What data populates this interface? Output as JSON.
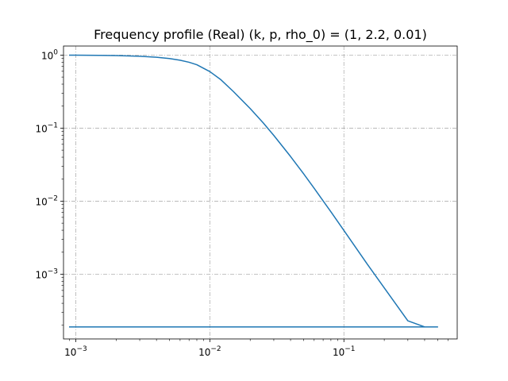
{
  "chart_data": {
    "type": "line",
    "title": "Frequency profile (Real) (k, p, rho_0) = (1, 2.2, 0.01)",
    "xlabel": "",
    "ylabel": "",
    "xscale": "log",
    "yscale": "log",
    "xlim": [
      0.00081,
      0.7
    ],
    "ylim": [
      0.00013,
      1.33
    ],
    "grid": true,
    "grid_style": "dash-dot",
    "line_color": "#1f77b4",
    "x_ticks": [
      {
        "value": 0.001,
        "base": "10",
        "exp": "−3"
      },
      {
        "value": 0.01,
        "base": "10",
        "exp": "−2"
      },
      {
        "value": 0.1,
        "base": "10",
        "exp": "−1"
      }
    ],
    "y_ticks": [
      {
        "value": 1,
        "base": "10",
        "exp": "0"
      },
      {
        "value": 0.1,
        "base": "10",
        "exp": "−1"
      },
      {
        "value": 0.01,
        "base": "10",
        "exp": "−2"
      },
      {
        "value": 0.001,
        "base": "10",
        "exp": "−3"
      }
    ],
    "series": [
      {
        "x": [
          0.0009,
          0.001,
          0.0015,
          0.002,
          0.003,
          0.004,
          0.005,
          0.006,
          0.007,
          0.008,
          0.01,
          0.012,
          0.015,
          0.02,
          0.025,
          0.03,
          0.04,
          0.05,
          0.06,
          0.08,
          0.1,
          0.15,
          0.2,
          0.3,
          0.4,
          0.5,
          0.5,
          0.2,
          0.05,
          0.01,
          0.001,
          0.0009
        ],
        "y": [
          0.9968,
          0.9961,
          0.991,
          0.9838,
          0.9627,
          0.9334,
          0.8961,
          0.8509,
          0.7979,
          0.7371,
          0.5946,
          0.4653,
          0.3166,
          0.1853,
          0.1181,
          0.0794,
          0.0409,
          0.0238,
          0.015,
          0.00715,
          0.00398,
          0.00136,
          0.00065,
          0.00023,
          0.00019,
          0.00019,
          0.00019,
          0.00019,
          0.00019,
          0.00019,
          0.00019,
          0.00019
        ]
      }
    ]
  }
}
